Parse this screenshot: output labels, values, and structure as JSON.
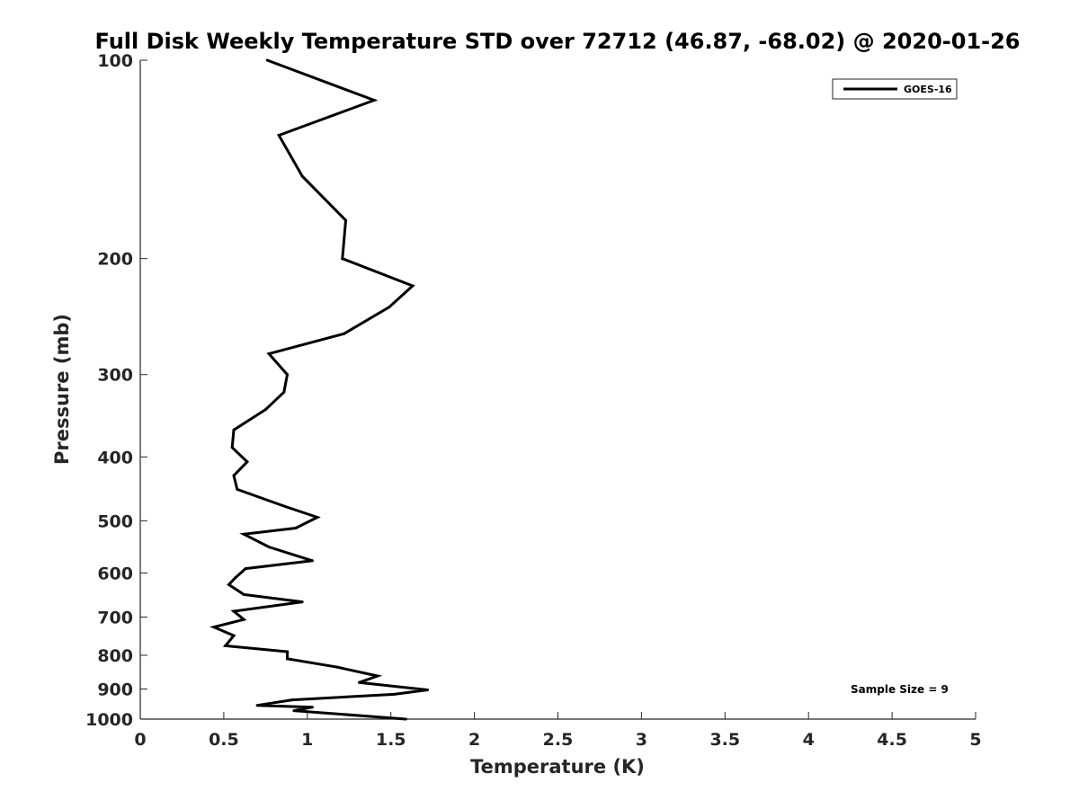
{
  "chart_data": {
    "type": "line",
    "title": "Full Disk Weekly Temperature STD over 72712 (46.87, -68.02) @ 2020-01-26",
    "xlabel": "Temperature (K)",
    "ylabel": "Pressure (mb)",
    "xlim": [
      0,
      5
    ],
    "ylim": [
      100,
      1000
    ],
    "yscale": "log",
    "y_reversed": true,
    "x_ticks": [
      "0",
      "0.5",
      "1",
      "1.5",
      "2",
      "2.5",
      "3",
      "3.5",
      "4",
      "4.5",
      "5"
    ],
    "y_ticks": [
      "100",
      "200",
      "300",
      "400",
      "500",
      "600",
      "700",
      "800",
      "900",
      "1000"
    ],
    "grid": false,
    "legend_position": "top-right",
    "annotation": "Sample Size = 9",
    "line_color": "#000000",
    "series": [
      {
        "name": "GOES-16",
        "x": [
          0.76,
          1.4,
          0.83,
          0.97,
          1.23,
          1.21,
          1.63,
          1.49,
          1.22,
          0.77,
          0.88,
          0.86,
          0.75,
          0.56,
          0.55,
          0.64,
          0.56,
          0.58,
          0.86,
          1.06,
          0.93,
          0.62,
          0.77,
          1.03,
          0.63,
          0.57,
          0.53,
          0.62,
          0.97,
          0.56,
          0.62,
          0.44,
          0.56,
          0.51,
          0.88,
          0.88,
          1.18,
          1.42,
          1.31,
          1.72,
          1.52,
          0.91,
          0.7,
          1.03,
          0.92,
          1.59
        ],
        "y": [
          100,
          115,
          130,
          150,
          175,
          200,
          220,
          237,
          260,
          279,
          300,
          319,
          339,
          364,
          387,
          407,
          427,
          448,
          475,
          494,
          513,
          524,
          548,
          575,
          591,
          610,
          625,
          647,
          664,
          686,
          706,
          725,
          747,
          774,
          790,
          810,
          834,
          860,
          880,
          903,
          917,
          935,
          953,
          959,
          971,
          1000
        ]
      }
    ]
  }
}
